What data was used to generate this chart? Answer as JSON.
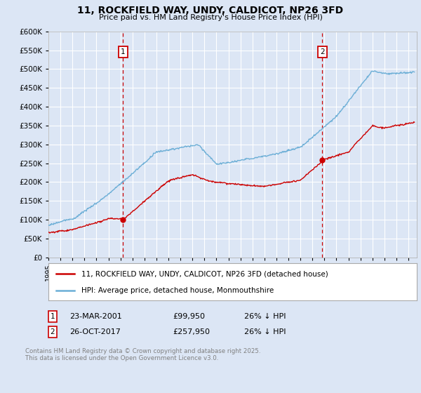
{
  "title": "11, ROCKFIELD WAY, UNDY, CALDICOT, NP26 3FD",
  "subtitle": "Price paid vs. HM Land Registry's House Price Index (HPI)",
  "background_color": "#dce6f5",
  "plot_bg_color": "#dce6f5",
  "y_min": 0,
  "y_max": 600000,
  "y_ticks": [
    0,
    50000,
    100000,
    150000,
    200000,
    250000,
    300000,
    350000,
    400000,
    450000,
    500000,
    550000,
    600000
  ],
  "x_min": 1995,
  "x_max": 2025.7,
  "hpi_color": "#6baed6",
  "price_color": "#cc0000",
  "marker1_year": 2001.22,
  "marker1_price": 99950,
  "marker2_year": 2017.82,
  "marker2_price": 257950,
  "legend_line1": "11, ROCKFIELD WAY, UNDY, CALDICOT, NP26 3FD (detached house)",
  "legend_line2": "HPI: Average price, detached house, Monmouthshire",
  "footer": "Contains HM Land Registry data © Crown copyright and database right 2025.\nThis data is licensed under the Open Government Licence v3.0."
}
